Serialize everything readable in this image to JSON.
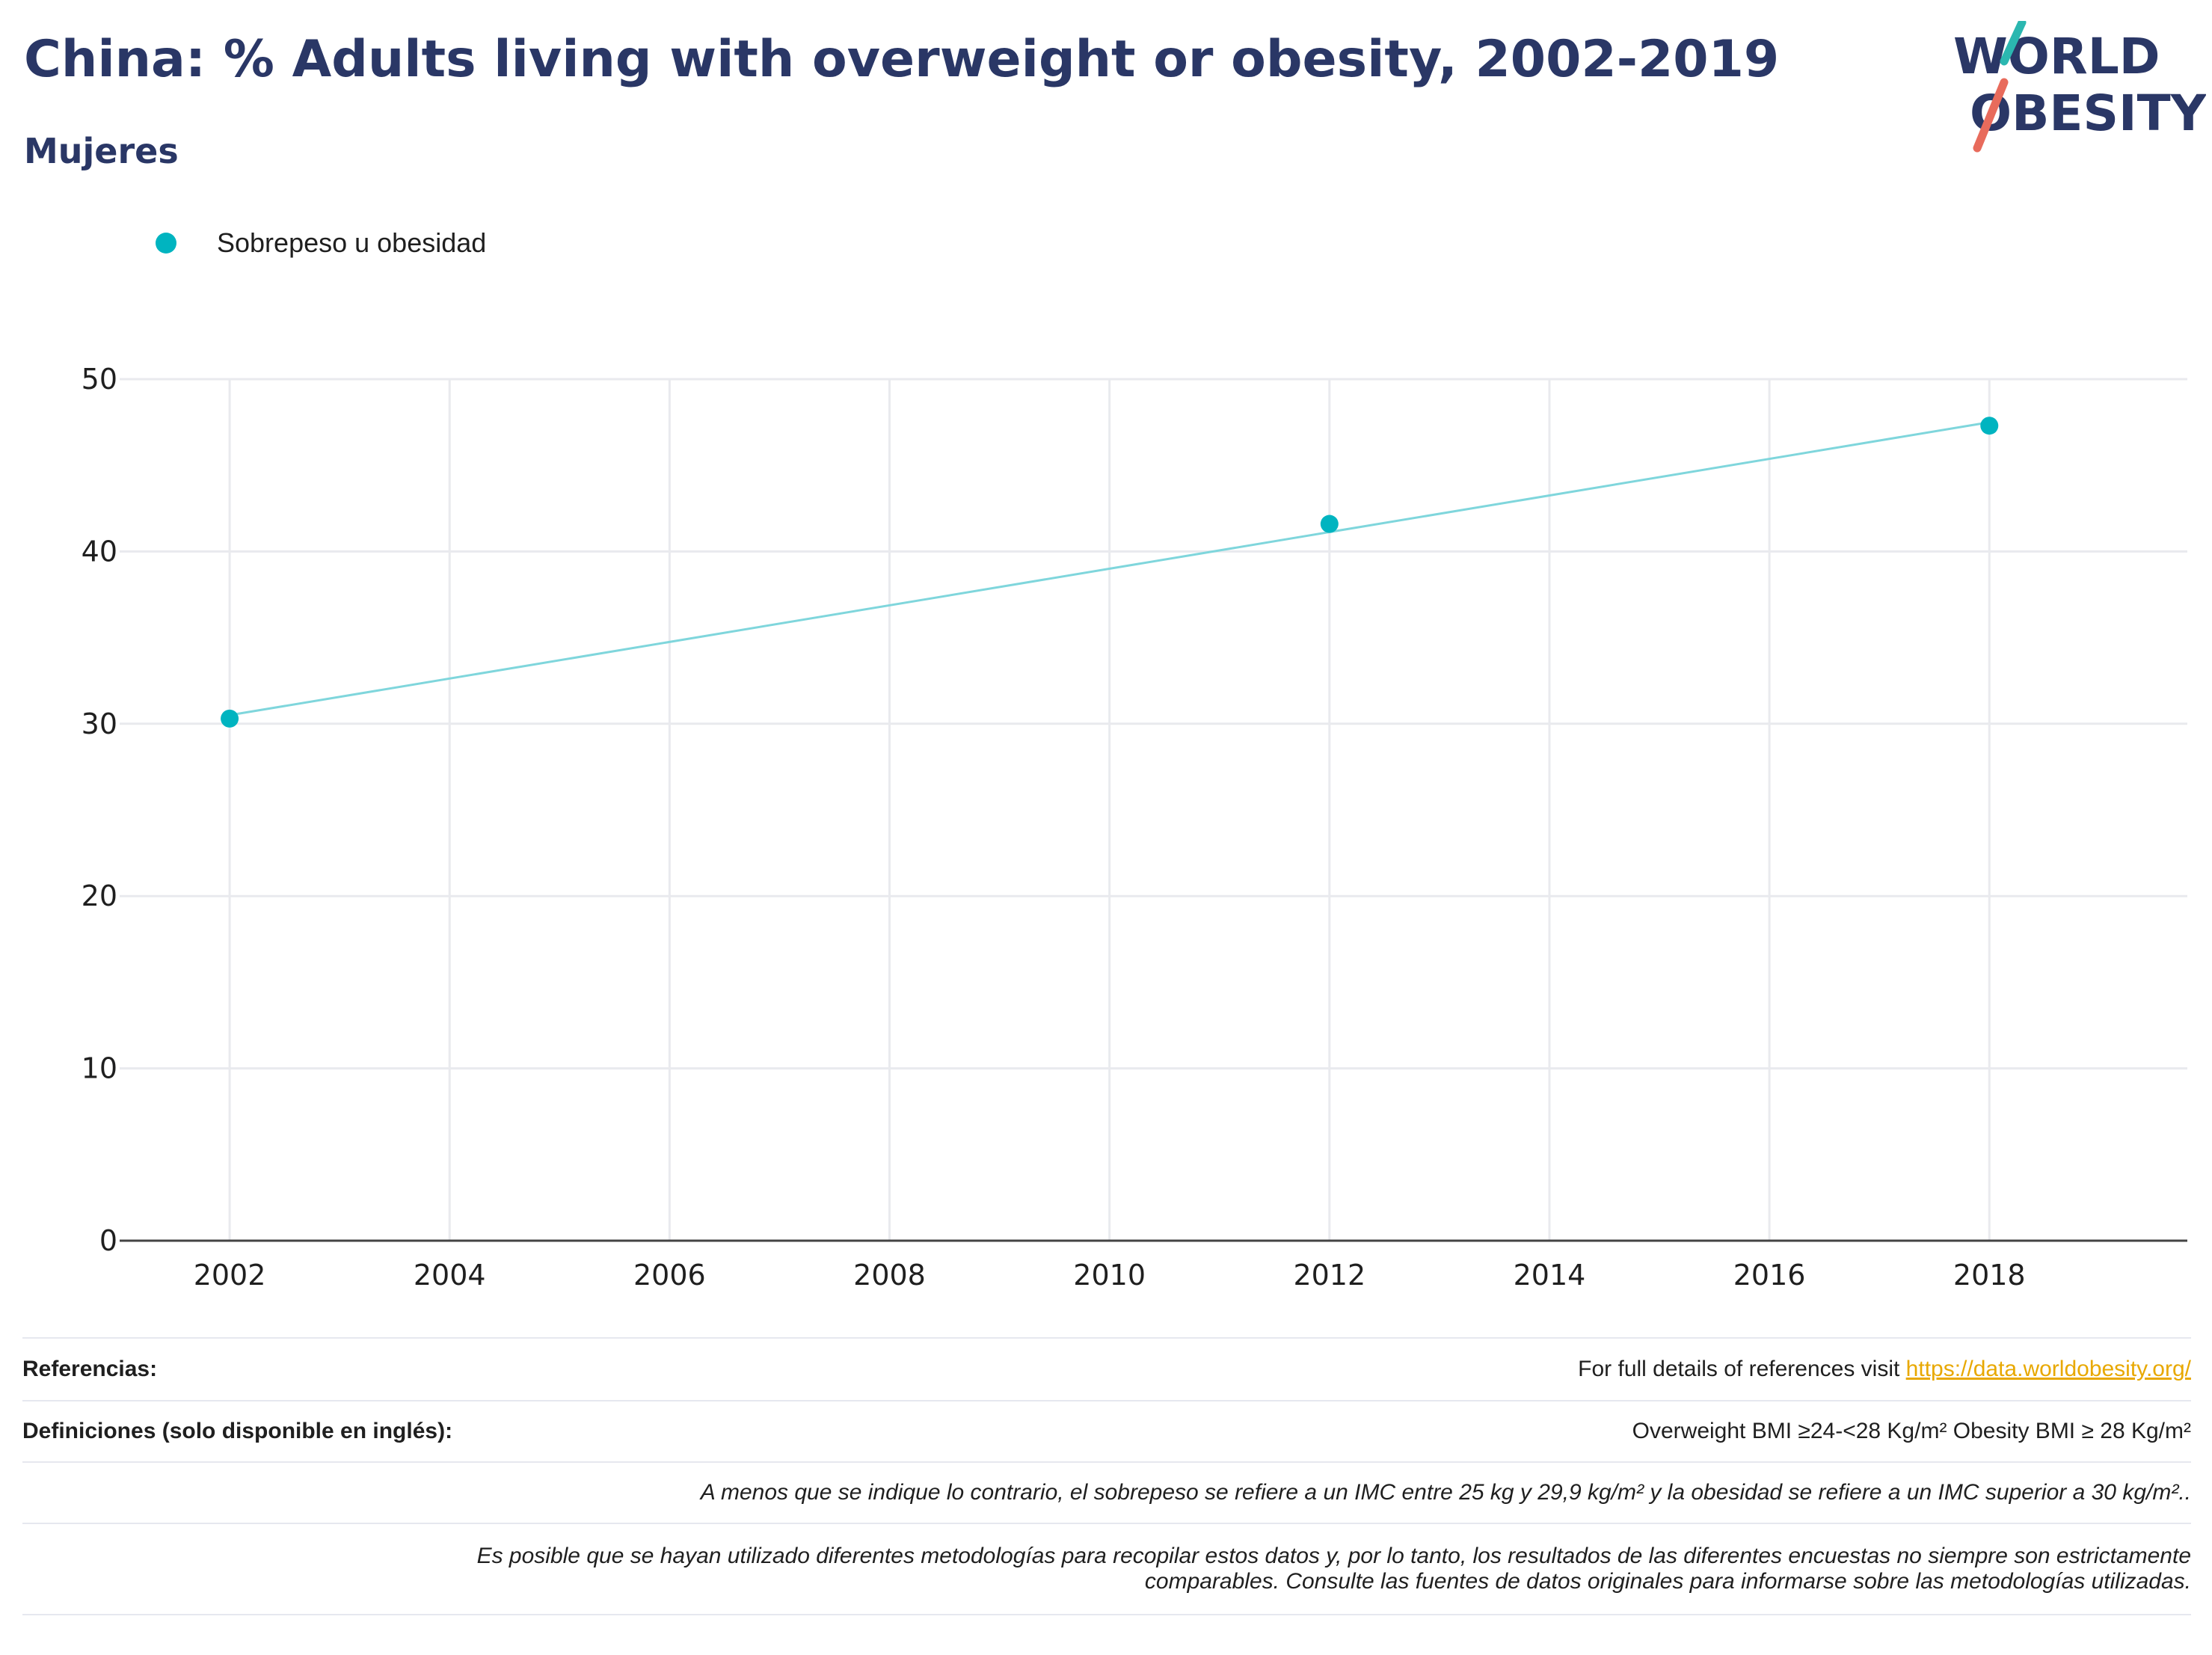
{
  "header": {
    "title": "China: % Adults living with overweight or obesity, 2002-2019",
    "subtitle": "Mujeres"
  },
  "logo": {
    "line1": "WORLD",
    "line2": "OBESITY",
    "accent_teal": "#2bb7b0",
    "accent_coral": "#e86b5c",
    "text_color": "#2a3766"
  },
  "legend": {
    "items": [
      {
        "label": "Sobrepeso u obesidad",
        "color": "#00b4c0"
      }
    ]
  },
  "chart_data": {
    "type": "line",
    "title": "China: % Adults living with overweight or obesity, 2002-2019",
    "subtitle": "Mujeres",
    "xlabel": "",
    "ylabel": "",
    "x_ticks": [
      2002,
      2004,
      2006,
      2008,
      2010,
      2012,
      2014,
      2016,
      2018
    ],
    "y_ticks": [
      0,
      10,
      20,
      30,
      40,
      50
    ],
    "xlim": [
      2001,
      2019.8
    ],
    "ylim": [
      0,
      50
    ],
    "grid": true,
    "legend_position": "top-left",
    "series": [
      {
        "name": "Sobrepeso u obesidad",
        "marker_color": "#00b4c0",
        "line_color": "#7fd6dc",
        "points": [
          {
            "x": 2002,
            "y": 30.3
          },
          {
            "x": 2012,
            "y": 41.6
          },
          {
            "x": 2018,
            "y": 47.3
          }
        ],
        "trend": [
          {
            "x": 2002,
            "y": 30.5
          },
          {
            "x": 2018,
            "y": 47.5
          }
        ]
      }
    ]
  },
  "footer": {
    "references_label": "Referencias:",
    "references_text": "For full details of references visit ",
    "references_link": "https://data.worldobesity.org/",
    "definitions_label": "Definiciones (solo disponible en inglés):",
    "definitions_text": "Overweight BMI ≥24-<28 Kg/m² Obesity BMI ≥ 28 Kg/m²",
    "note1": "A menos que se indique lo contrario, el sobrepeso se refiere a un IMC entre 25 kg y 29,9 kg/m² y la obesidad se refiere a un IMC superior a 30 kg/m²..",
    "note2_line1": "Es posible que se hayan utilizado diferentes metodologías para recopilar estos datos y, por lo tanto, los resultados de las diferentes encuestas no siempre son estrictamente",
    "note2_line2": "comparables. Consulte las fuentes de datos originales para informarse sobre las metodologías utilizadas."
  }
}
